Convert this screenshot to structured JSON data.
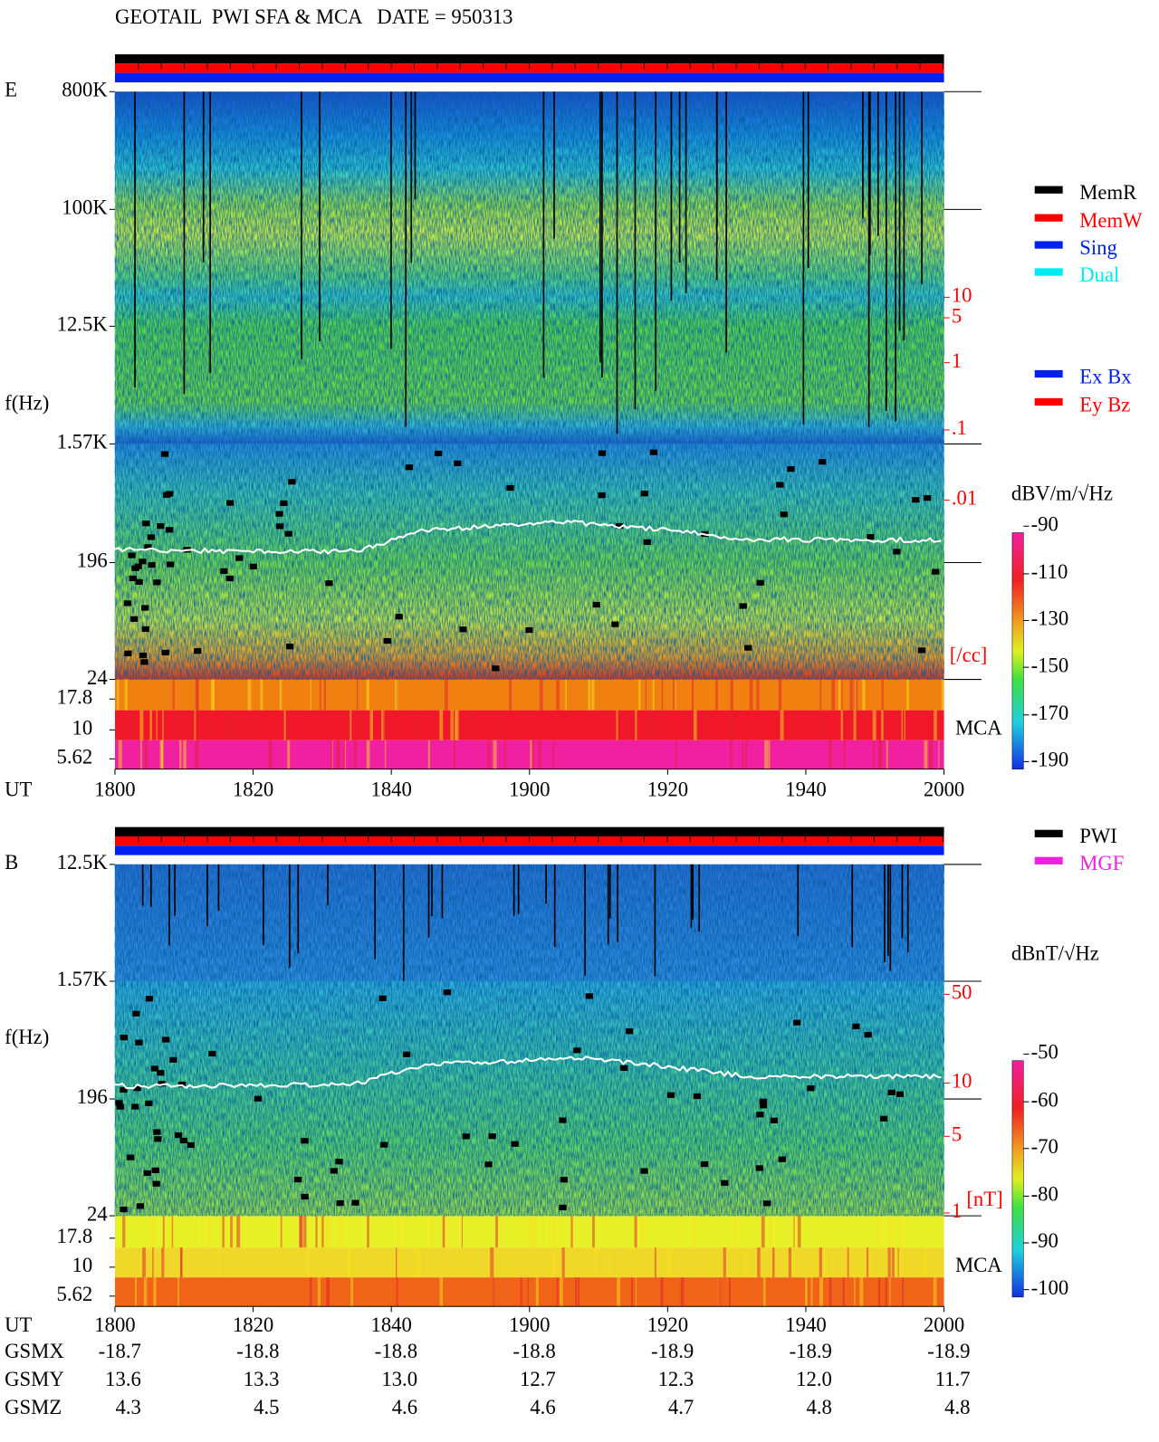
{
  "header": {
    "title": "GEOTAIL  PWI SFA & MCA   DATE = 950313"
  },
  "panels": [
    {
      "label": "E",
      "axis_label": "f(Hz)",
      "freq_ticks": [
        "800K",
        "100K",
        "12.5K",
        "1.57K",
        "196",
        "24"
      ],
      "mca_ticks": [
        "17.8",
        "10",
        "5.62"
      ],
      "mca_label": "MCA",
      "time_label": "UT",
      "time_ticks": [
        "1800",
        "1820",
        "1840",
        "1900",
        "1920",
        "1940",
        "2000"
      ],
      "right_ticks": [
        "10",
        "5",
        "1",
        ".1",
        ".01"
      ],
      "right_unit": "[/cc]",
      "legend": [
        "MemR",
        "MemW",
        "Sing",
        "Dual"
      ],
      "legend_components": [
        "Ex Bx",
        "Ey Bz"
      ],
      "colorbar_unit": "dBV/m/√Hz",
      "colorbar_ticks": [
        "-90",
        "-110",
        "-130",
        "-150",
        "-170",
        "-190"
      ]
    },
    {
      "label": "B",
      "axis_label": "f(Hz)",
      "freq_ticks": [
        "12.5K",
        "1.57K",
        "196",
        "24"
      ],
      "mca_ticks": [
        "17.8",
        "10",
        "5.62"
      ],
      "mca_label": "MCA",
      "time_label": "UT",
      "time_ticks": [
        "1800",
        "1820",
        "1840",
        "1900",
        "1920",
        "1940",
        "2000"
      ],
      "right_ticks": [
        "50",
        "10",
        "5",
        "1"
      ],
      "right_unit": "[nT]",
      "legend": [
        "PWI",
        "MGF"
      ],
      "colorbar_unit": "dBnT/√Hz",
      "colorbar_ticks": [
        "-50",
        "-60",
        "-70",
        "-80",
        "-90",
        "-100"
      ]
    }
  ],
  "orbit": {
    "rows": [
      {
        "label": "GSMX",
        "values": [
          "-18.7",
          "-18.8",
          "-18.8",
          "-18.8",
          "-18.9",
          "-18.9",
          "-18.9"
        ]
      },
      {
        "label": "GSMY",
        "values": [
          "13.6",
          "13.3",
          "13.0",
          "12.7",
          "12.3",
          "12.0",
          "11.7"
        ]
      },
      {
        "label": "GSMZ",
        "values": [
          "4.3",
          "4.5",
          "4.6",
          "4.6",
          "4.7",
          "4.8",
          "4.8"
        ]
      }
    ]
  }
}
